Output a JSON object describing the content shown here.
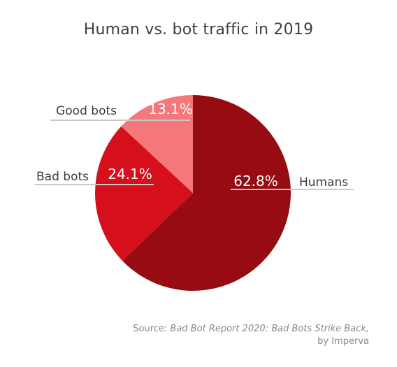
{
  "title": "Human vs. bot traffic in 2019",
  "source": {
    "prefix": "Source: ",
    "report": "Bad Bot Report 2020: Bad Bots Strike Back,",
    "by": "by Imperva"
  },
  "colors": {
    "humans": "#960c12",
    "bad_bots": "#d60f1d",
    "good_bots": "#f4777a",
    "label_text": "#3c3c3c",
    "leader_line": "#c8c8c8",
    "value_text": "#ffffff"
  },
  "chart_data": {
    "type": "pie",
    "title": "Human vs. bot traffic in 2019",
    "categories": [
      "Humans",
      "Bad bots",
      "Good bots"
    ],
    "values": [
      62.8,
      24.1,
      13.1
    ],
    "value_labels": [
      "62.8%",
      "24.1%",
      "13.1%"
    ],
    "start": "12 o'clock",
    "direction": "clockwise"
  }
}
